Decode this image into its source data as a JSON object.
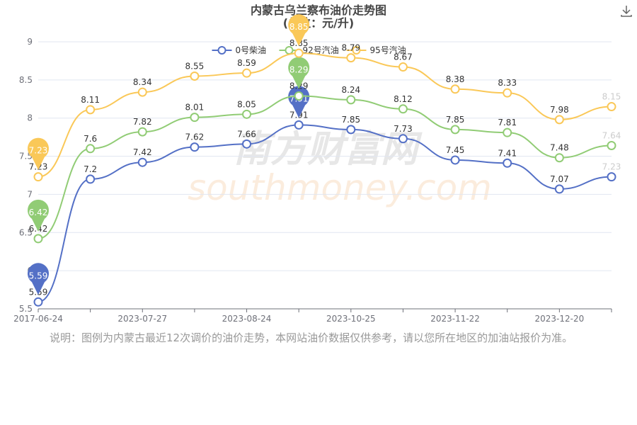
{
  "chart_data": {
    "type": "line",
    "title": "内蒙古乌兰察布油价走势图",
    "subtitle": "(单位：元/升)",
    "categories": [
      "2017-06-24",
      null,
      "2023-07-27",
      null,
      "2023-08-24",
      null,
      "2023-10-25",
      null,
      "2023-11-22",
      null,
      "2023-12-20",
      null
    ],
    "series": [
      {
        "name": "0号柴油",
        "color": "#5470c6",
        "values": [
          5.59,
          7.2,
          7.42,
          7.62,
          7.66,
          7.91,
          7.85,
          7.73,
          7.45,
          7.41,
          7.07,
          7.23
        ]
      },
      {
        "name": "92号汽油",
        "color": "#91cc75",
        "values": [
          6.42,
          7.6,
          7.82,
          8.01,
          8.05,
          8.29,
          8.24,
          8.12,
          7.85,
          7.81,
          7.48,
          7.64
        ]
      },
      {
        "name": "95号汽油",
        "color": "#fac858",
        "values": [
          7.23,
          8.11,
          8.34,
          8.55,
          8.59,
          8.85,
          8.79,
          8.67,
          8.38,
          8.33,
          7.98,
          8.15
        ]
      }
    ],
    "ylim": [
      5.5,
      9
    ],
    "yticks": [
      5.5,
      6,
      6.5,
      7,
      7.5,
      8,
      8.5,
      9
    ],
    "grid": true,
    "watermark": [
      "南方财富网",
      "southmoney.com"
    ],
    "note": "说明：图例为内蒙古最近12次调价的油价走势，本网站油价数据仅供参考，请以您所在地区的加油站报价为准。"
  }
}
